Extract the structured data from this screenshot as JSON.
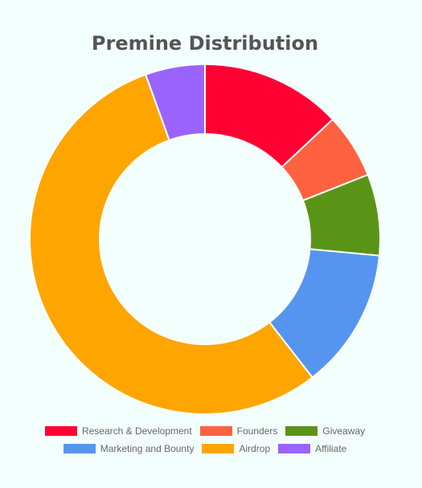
{
  "chart_data": {
    "type": "pie",
    "title": "Premine Distribution",
    "categories": [
      "Research & Development",
      "Founders",
      "Giveaway",
      "Marketing and Bounty",
      "Airdrop",
      "Affiliate"
    ],
    "values": [
      13,
      6,
      7.5,
      13,
      55,
      5.5
    ],
    "colors": [
      "#ff0033",
      "#ff6240",
      "#5a9417",
      "#5595ef",
      "#ffa500",
      "#9b63fd"
    ],
    "legend_position": "bottom",
    "donut": true,
    "legend_rows": [
      [
        0,
        1,
        2
      ],
      [
        3,
        4,
        5
      ]
    ]
  }
}
